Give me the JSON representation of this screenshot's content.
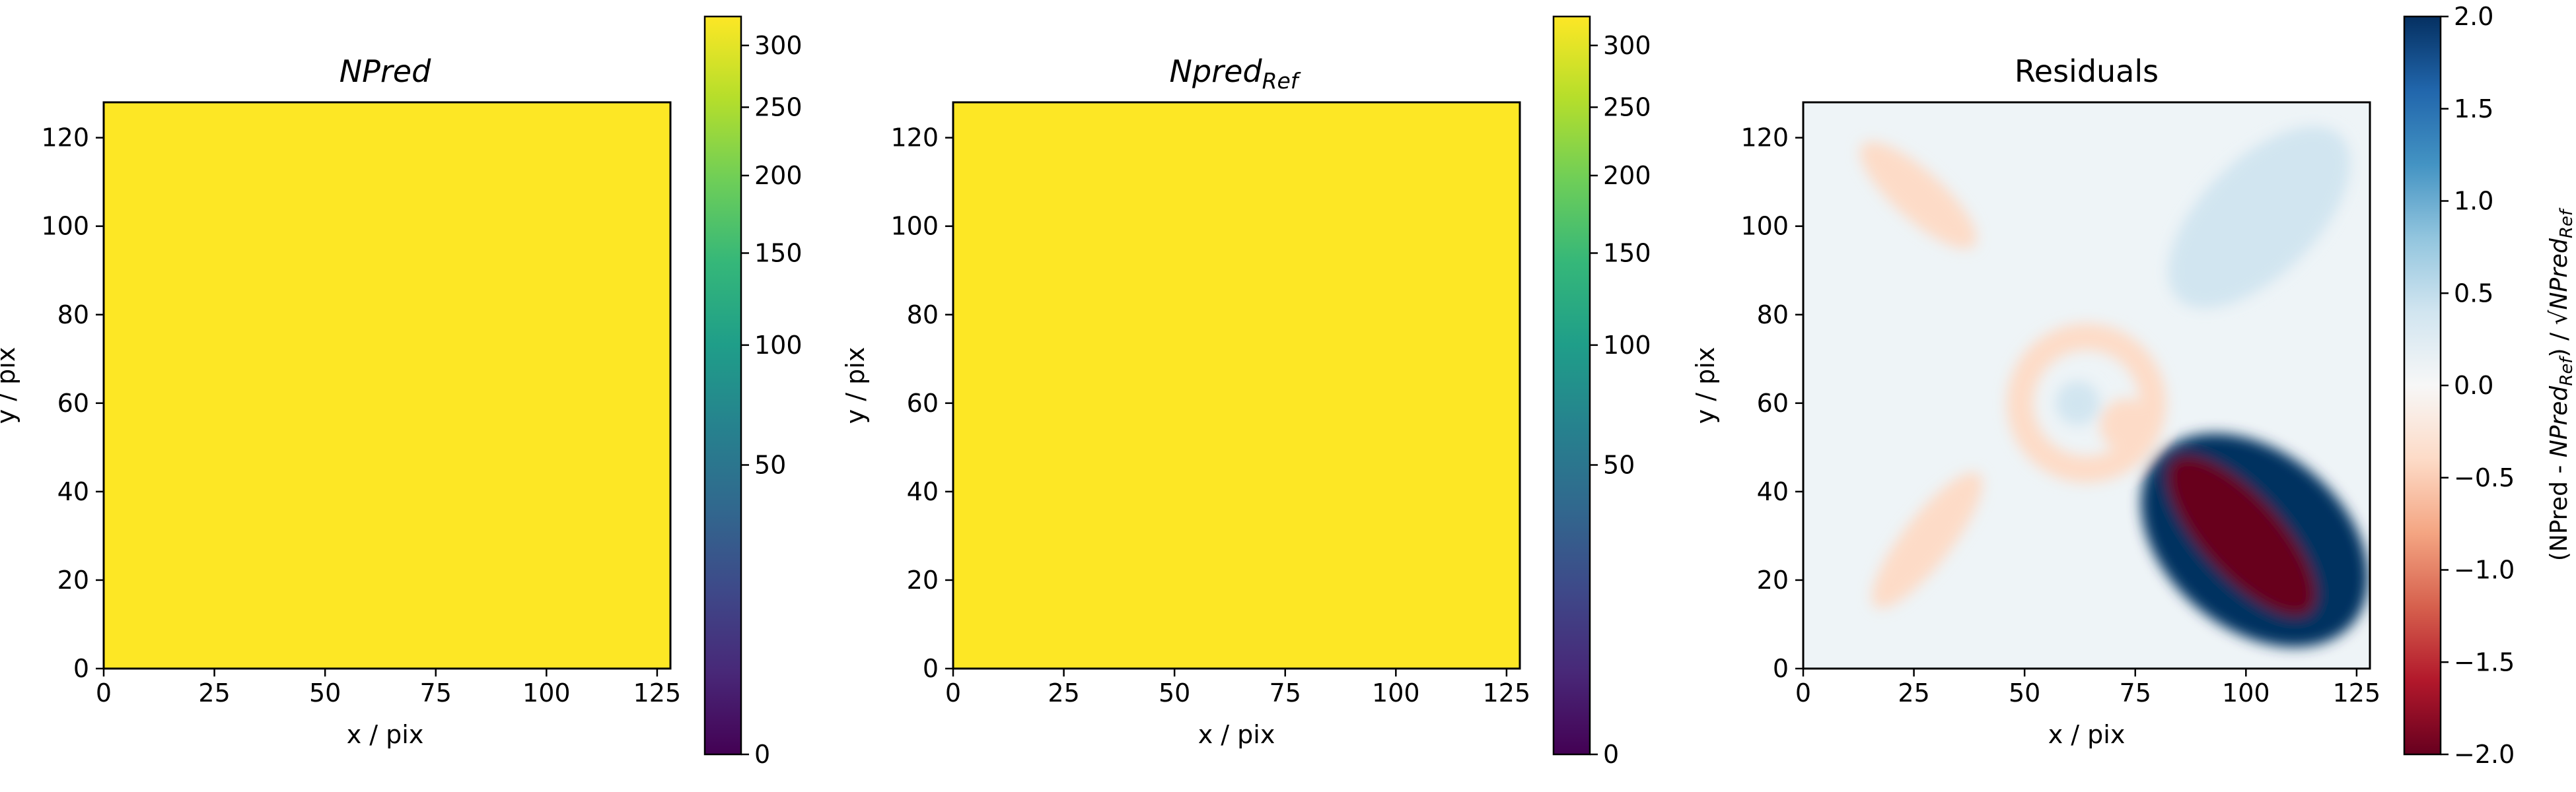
{
  "colors": {
    "background": "#ffffff",
    "npred_fill": "#fde725",
    "viridis_stops": [
      "#440154",
      "#482878",
      "#3e4989",
      "#31688e",
      "#26828e",
      "#1f9e89",
      "#35b779",
      "#6ece58",
      "#b5de2b",
      "#fde725"
    ],
    "rdbu_stops": [
      "#67001f",
      "#b2182b",
      "#d6604d",
      "#f4a582",
      "#fddbc7",
      "#f7f7f7",
      "#d1e5f0",
      "#92c5de",
      "#4393c3",
      "#2166ac",
      "#053061"
    ]
  },
  "chart_data": [
    {
      "type": "heatmap",
      "title": "NPred",
      "title_style": "italic",
      "xlabel": "x / pix",
      "ylabel": "y / pix",
      "xlim": [
        0,
        128
      ],
      "ylim": [
        0,
        128
      ],
      "xticks": [
        "0",
        "25",
        "50",
        "75",
        "100",
        "125"
      ],
      "yticks": [
        "0",
        "20",
        "40",
        "60",
        "80",
        "100",
        "120"
      ],
      "fill_value": 320,
      "colorbar": {
        "colormap": "viridis",
        "scale": "sqrt",
        "range": [
          0,
          325
        ],
        "ticks": [
          "0",
          "50",
          "100",
          "150",
          "200",
          "250",
          "300"
        ],
        "label": ""
      }
    },
    {
      "type": "heatmap",
      "title": "Npred",
      "title_sub": "Ref",
      "title_style": "italic",
      "xlabel": "x / pix",
      "ylabel": "y / pix",
      "xlim": [
        0,
        128
      ],
      "ylim": [
        0,
        128
      ],
      "xticks": [
        "0",
        "25",
        "50",
        "75",
        "100",
        "125"
      ],
      "yticks": [
        "0",
        "20",
        "40",
        "60",
        "80",
        "100",
        "120"
      ],
      "fill_value": 320,
      "colorbar": {
        "colormap": "viridis",
        "scale": "sqrt",
        "range": [
          0,
          325
        ],
        "ticks": [
          "0",
          "50",
          "100",
          "150",
          "200",
          "250",
          "300"
        ],
        "label": ""
      }
    },
    {
      "type": "heatmap",
      "title": "Residuals",
      "xlabel": "x / pix",
      "ylabel": "y / pix",
      "xlim": [
        0,
        128
      ],
      "ylim": [
        0,
        128
      ],
      "xticks": [
        "0",
        "25",
        "50",
        "75",
        "100",
        "125"
      ],
      "yticks": [
        "0",
        "20",
        "40",
        "60",
        "80",
        "100",
        "120"
      ],
      "colorbar": {
        "colormap": "RdBu",
        "scale": "linear",
        "range": [
          -2,
          2
        ],
        "ticks": [
          "2.0",
          "1.5",
          "1.0",
          "0.5",
          "0.0",
          "−0.5",
          "−1.0",
          "−1.5",
          "−2.0"
        ],
        "label": "(NPred - NPred_Ref) / √NPred_Ref",
        "label_parts": [
          "(NPred - ",
          "NPred",
          "Ref",
          ") / ",
          "√",
          "NPred",
          "Ref"
        ]
      },
      "features": [
        {
          "kind": "elongated",
          "center": [
            26,
            107
          ],
          "length": 34,
          "width": 11,
          "angle_deg": -42,
          "value": -0.4
        },
        {
          "kind": "elongated",
          "center": [
            28,
            29
          ],
          "length": 38,
          "width": 11,
          "angle_deg": 52,
          "value": -0.4
        },
        {
          "kind": "elongated",
          "center": [
            105,
            99
          ],
          "length": 44,
          "width": 11,
          "angle_deg": 45,
          "value": -0.8
        },
        {
          "kind": "elongated",
          "center": [
            103,
            102
          ],
          "length": 52,
          "width": 26,
          "angle_deg": 45,
          "value": 0.35
        },
        {
          "kind": "ring",
          "center": [
            64,
            60
          ],
          "radius": 15,
          "width": 6,
          "value": -0.35
        },
        {
          "kind": "blob",
          "center": [
            62,
            60
          ],
          "radius": 5,
          "value": 0.4
        },
        {
          "kind": "blob",
          "center": [
            73,
            55
          ],
          "radius": 6,
          "value": -0.6
        },
        {
          "kind": "elongated",
          "center": [
            102,
            29
          ],
          "length": 58,
          "width": 40,
          "angle_deg": -40,
          "value": 2.0
        },
        {
          "kind": "elongated",
          "center": [
            99,
            30
          ],
          "length": 46,
          "width": 18,
          "angle_deg": -48,
          "value": -2.0
        }
      ]
    }
  ]
}
